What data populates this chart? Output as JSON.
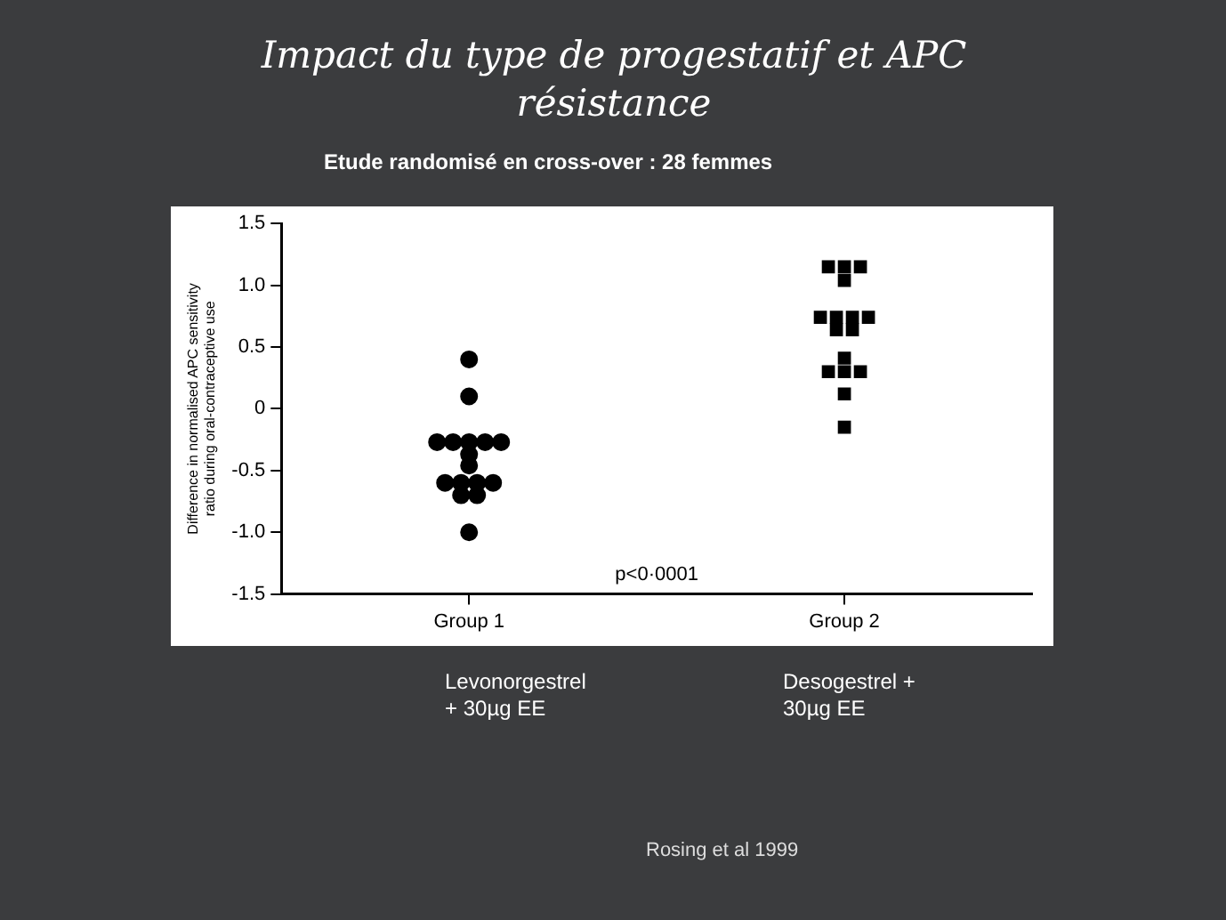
{
  "chart_data": {
    "type": "scatter",
    "title": "Impact du type de progestatif et APC résistance",
    "subtitle": "Etude randomisé en cross-over : 28 femmes",
    "ylabel": "Difference in normalised APC sensitivity ratio during oral-contraceptive use",
    "categories": [
      "Group 1",
      "Group 2"
    ],
    "series": [
      {
        "color": "#000000",
        "marker": "circle",
        "x": [
          "Group 1",
          "Group 1",
          "Group 1",
          "Group 1",
          "Group 1",
          "Group 1",
          "Group 1",
          "Group 1",
          "Group 1",
          "Group 1",
          "Group 1",
          "Group 1",
          "Group 1",
          "Group 1",
          "Group 1",
          "Group 1"
        ],
        "values": [
          0.4,
          0.1,
          -0.27,
          -0.27,
          -0.27,
          -0.27,
          -0.27,
          -0.37,
          -0.46,
          -0.6,
          -0.6,
          -0.6,
          -0.6,
          -0.7,
          -0.7,
          -1.0
        ]
      },
      {
        "color": "#000000",
        "marker": "square",
        "x": [
          "Group 2",
          "Group 2",
          "Group 2",
          "Group 2",
          "Group 2",
          "Group 2",
          "Group 2",
          "Group 2",
          "Group 2",
          "Group 2",
          "Group 2",
          "Group 2",
          "Group 2",
          "Group 2",
          "Group 2",
          "Group 2"
        ],
        "values": [
          1.15,
          1.15,
          1.15,
          1.04,
          0.74,
          0.74,
          0.74,
          0.74,
          0.64,
          0.64,
          0.41,
          0.3,
          0.3,
          0.3,
          0.12,
          -0.15
        ]
      }
    ],
    "ylim": [
      -1.5,
      1.5
    ],
    "yticks": [
      {
        "value": -1.5,
        "label": "-1.5"
      },
      {
        "value": -1,
        "label": "-1.0"
      },
      {
        "value": -0.5,
        "label": "-0.5"
      },
      0,
      {
        "value": 0.5,
        "label": "0.5"
      },
      {
        "value": 1,
        "label": "1.0"
      },
      {
        "value": 1.5,
        "label": "1.5"
      }
    ],
    "grid": false,
    "legend": false,
    "annotations": [
      "p<0·0001",
      "Levonorgestrel + 30µg EE",
      "Desogestrel + 30µg EE",
      "Rosing et al 1999"
    ]
  }
}
